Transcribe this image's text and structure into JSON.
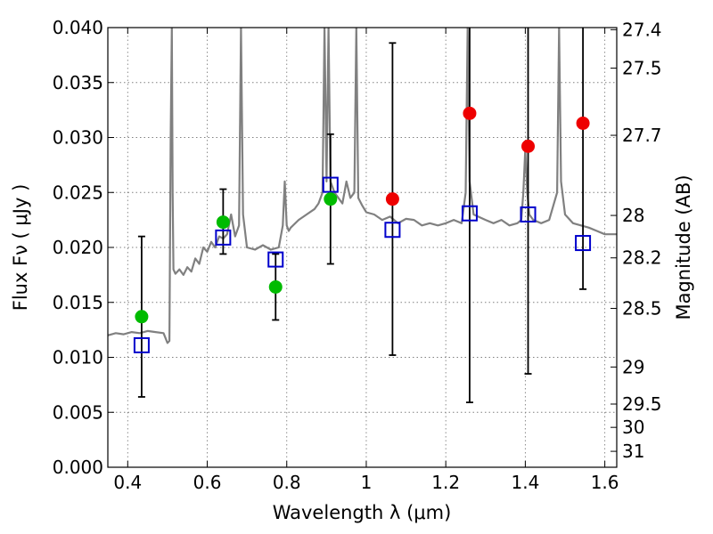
{
  "chart_data": {
    "type": "scatter",
    "xlabel": "Wavelength  λ (μm)",
    "ylabel": "Flux  Fν  ( μJy )",
    "y2label": "Magnitude (AB)",
    "xlim": [
      0.35,
      1.63
    ],
    "ylim": [
      0.0,
      0.04
    ],
    "grid": true,
    "x_ticks": [
      0.4,
      0.6,
      0.8,
      1.0,
      1.2,
      1.4,
      1.6
    ],
    "x_tick_labels": [
      "0.4",
      "0.6",
      "0.8",
      "1",
      "1.2",
      "1.4",
      "1.6"
    ],
    "y_ticks": [
      0.0,
      0.005,
      0.01,
      0.015,
      0.02,
      0.025,
      0.03,
      0.035,
      0.04
    ],
    "y_tick_labels": [
      "0.000",
      "0.005",
      "0.010",
      "0.015",
      "0.020",
      "0.025",
      "0.030",
      "0.035",
      "0.040"
    ],
    "y2_ticks": [
      {
        "label": "27.4",
        "flux": 0.03981
      },
      {
        "label": "27.5",
        "flux": 0.03631
      },
      {
        "label": "27.7",
        "flux": 0.0302
      },
      {
        "label": "28",
        "flux": 0.02291
      },
      {
        "label": "28.2",
        "flux": 0.01905
      },
      {
        "label": "28.5",
        "flux": 0.01445
      },
      {
        "label": "29",
        "flux": 0.00912
      },
      {
        "label": "29.5",
        "flux": 0.00575
      },
      {
        "label": "30",
        "flux": 0.00363
      },
      {
        "label": "31",
        "flux": 0.00145
      }
    ],
    "colors": {
      "template": "#808080",
      "model": "#0000cc",
      "green": "#00bb00",
      "red": "#ee0000",
      "errorbar": "#000000",
      "grid": "#808080"
    },
    "series": [
      {
        "marker": "line",
        "color": "#808080",
        "x": [
          0.35,
          0.37,
          0.39,
          0.41,
          0.43,
          0.45,
          0.47,
          0.49,
          0.5,
          0.505,
          0.508,
          0.511,
          0.513,
          0.515,
          0.52,
          0.53,
          0.54,
          0.55,
          0.56,
          0.57,
          0.58,
          0.59,
          0.6,
          0.61,
          0.62,
          0.63,
          0.64,
          0.65,
          0.66,
          0.67,
          0.68,
          0.685,
          0.69,
          0.7,
          0.72,
          0.74,
          0.76,
          0.78,
          0.79,
          0.795,
          0.8,
          0.805,
          0.81,
          0.83,
          0.85,
          0.87,
          0.88,
          0.89,
          0.895,
          0.9,
          0.905,
          0.91,
          0.92,
          0.93,
          0.94,
          0.95,
          0.96,
          0.97,
          0.975,
          0.98,
          0.99,
          1.0,
          1.02,
          1.04,
          1.06,
          1.08,
          1.1,
          1.12,
          1.14,
          1.16,
          1.18,
          1.2,
          1.22,
          1.24,
          1.25,
          1.255,
          1.26,
          1.27,
          1.3,
          1.32,
          1.34,
          1.36,
          1.38,
          1.39,
          1.395,
          1.4,
          1.405,
          1.41,
          1.42,
          1.44,
          1.46,
          1.48,
          1.485,
          1.49,
          1.5,
          1.52,
          1.54,
          1.56,
          1.58,
          1.6,
          1.63
        ],
        "y": [
          0.012,
          0.0122,
          0.0121,
          0.0123,
          0.0122,
          0.0124,
          0.0123,
          0.0122,
          0.0113,
          0.0115,
          0.03,
          0.04,
          0.025,
          0.018,
          0.0176,
          0.018,
          0.0175,
          0.0182,
          0.0178,
          0.019,
          0.0185,
          0.02,
          0.0196,
          0.0205,
          0.02,
          0.021,
          0.0208,
          0.0212,
          0.023,
          0.021,
          0.022,
          0.04,
          0.023,
          0.02,
          0.0198,
          0.0202,
          0.0198,
          0.02,
          0.022,
          0.026,
          0.022,
          0.0215,
          0.0218,
          0.0225,
          0.023,
          0.0235,
          0.024,
          0.025,
          0.04,
          0.026,
          0.04,
          0.026,
          0.025,
          0.0245,
          0.024,
          0.026,
          0.0245,
          0.025,
          0.04,
          0.0245,
          0.0238,
          0.0232,
          0.023,
          0.0225,
          0.0228,
          0.0222,
          0.0226,
          0.0225,
          0.022,
          0.0222,
          0.022,
          0.0222,
          0.0225,
          0.0222,
          0.025,
          0.04,
          0.026,
          0.023,
          0.0225,
          0.0222,
          0.0225,
          0.022,
          0.0222,
          0.0225,
          0.025,
          0.029,
          0.025,
          0.023,
          0.0225,
          0.0222,
          0.0225,
          0.025,
          0.04,
          0.026,
          0.023,
          0.0222,
          0.022,
          0.0218,
          0.0215,
          0.0212,
          0.0212
        ]
      },
      {
        "marker": "open-square",
        "color": "#0000cc",
        "x": [
          0.435,
          0.64,
          0.772,
          0.91,
          1.066,
          1.26,
          1.407,
          1.545
        ],
        "y": [
          0.0111,
          0.0209,
          0.0189,
          0.0257,
          0.0216,
          0.0231,
          0.023,
          0.0204
        ]
      },
      {
        "marker": "filled-circle",
        "color": "#00bb00",
        "x": [
          0.435,
          0.64,
          0.772,
          0.91
        ],
        "y": [
          0.0137,
          0.0223,
          0.0164,
          0.0244
        ],
        "yerr_low": [
          0.0064,
          0.0194,
          0.0134,
          0.0185
        ],
        "yerr_high": [
          0.021,
          0.0253,
          0.0194,
          0.0303
        ]
      },
      {
        "marker": "filled-circle",
        "color": "#ee0000",
        "x": [
          1.066,
          1.26,
          1.407,
          1.545
        ],
        "y": [
          0.0244,
          0.0322,
          0.0292,
          0.0313
        ],
        "yerr_low": [
          0.0102,
          0.0059,
          0.0085,
          0.0162
        ],
        "yerr_high": [
          0.0386,
          0.04,
          0.04,
          0.04
        ]
      }
    ]
  }
}
